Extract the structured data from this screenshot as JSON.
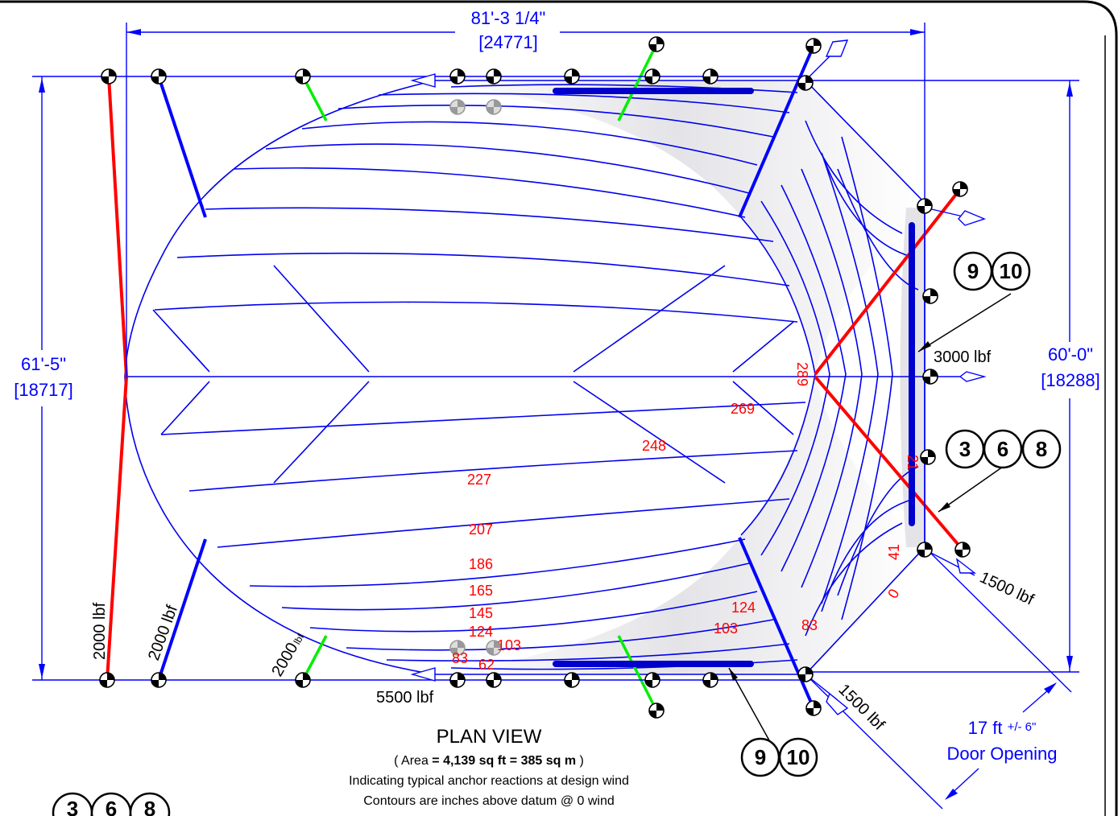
{
  "dimensions": {
    "top_width": "81'-3 1/4\"",
    "top_width_mm": "[24771]",
    "left_depth": "61'-5\"",
    "left_depth_mm": "[18717]",
    "right_depth": "60'-0\"",
    "right_depth_mm": "[18288]",
    "door_opening_value": "17 ft",
    "door_opening_tol": "+/- 6\"",
    "door_opening_label": "Door Opening"
  },
  "loads": {
    "left_red": "2000 lbf",
    "left_blue": "2000 lbf",
    "bottom_green": "2000",
    "bottom_green_unit": "lbf",
    "bottom_center": "5500 lbf",
    "right_center": "3000 lbf",
    "right_lower": "1500 lbf",
    "bottom_right": "1500 lbf"
  },
  "contour_labels": {
    "c289": "289",
    "c269": "269",
    "c248": "248",
    "c227": "227",
    "c207": "207",
    "c186": "186",
    "c165": "165",
    "c145": "145",
    "c124": "124",
    "c103": "103",
    "c83": "83",
    "c62": "62",
    "c124b": "124",
    "c103b": "103",
    "c83b": "83",
    "c41": "41",
    "c0": "0",
    "c21": "21"
  },
  "callouts": {
    "upper_right": [
      "9",
      "10"
    ],
    "mid_right": [
      "3",
      "6",
      "8"
    ],
    "bottom": [
      "9",
      "10"
    ],
    "legend": [
      "3",
      "6",
      "8"
    ]
  },
  "caption": {
    "title": "PLAN VIEW",
    "area_prefix": "( Area ",
    "area_value": "= 4,139 sq ft  = 385 sq m",
    "area_suffix": " )",
    "line2": "Indicating typical anchor reactions at design wind",
    "line3": "Contours are inches above datum @ 0 wind"
  },
  "colors": {
    "dimension": "#0000ff",
    "contour": "#0000ee",
    "contour_label": "#ff0000",
    "high_load_cable": "#ff0000",
    "medium_load_cable": "#0000ff",
    "low_load_cable": "#00ee00"
  }
}
